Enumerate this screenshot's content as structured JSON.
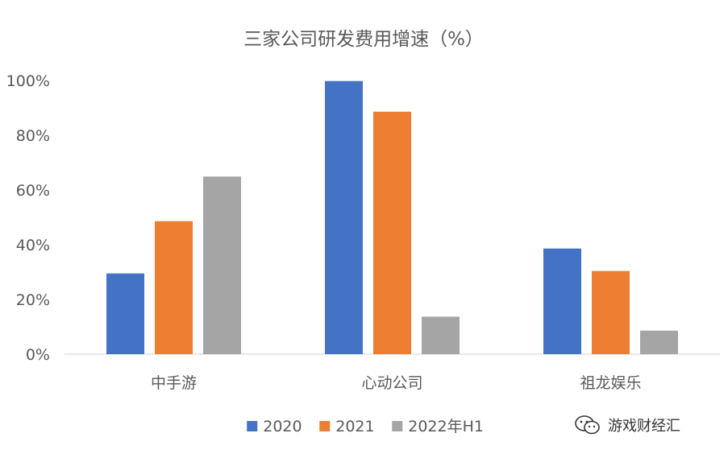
{
  "chart_data": {
    "type": "bar",
    "title": "三家公司研发费用增速（%）",
    "categories": [
      "中手游",
      "心动公司",
      "祖龙娱乐"
    ],
    "series": [
      {
        "name": "2020",
        "color": "#4472C4",
        "values": [
          29.5,
          99.8,
          38.6
        ]
      },
      {
        "name": "2021",
        "color": "#ED7D31",
        "values": [
          48.6,
          88.6,
          30.4
        ]
      },
      {
        "name": "2022年H1",
        "color": "#A5A5A5",
        "values": [
          64.9,
          13.7,
          8.6
        ]
      }
    ],
    "ylim": [
      0,
      100
    ],
    "yticks": [
      0,
      20,
      40,
      60,
      80,
      100
    ],
    "ytick_labels": [
      "0%",
      "20%",
      "40%",
      "60%",
      "80%",
      "100%"
    ],
    "grid": false,
    "legend_position": "bottom"
  },
  "watermark": {
    "text": "游戏财经汇",
    "icon": "wechat-icon"
  }
}
